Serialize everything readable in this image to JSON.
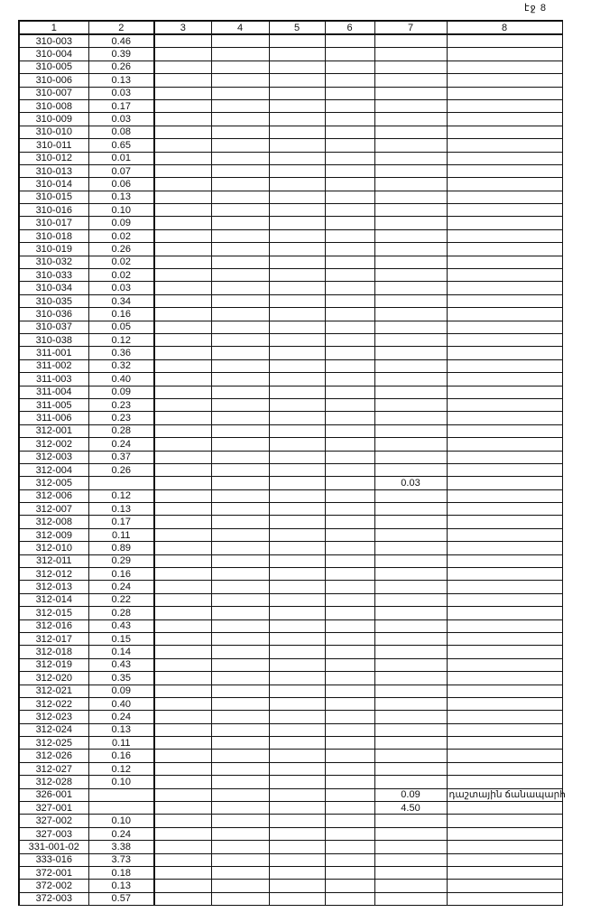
{
  "page_label": "էջ 8",
  "headers": [
    "1",
    "2",
    "3",
    "4",
    "5",
    "6",
    "7",
    "8"
  ],
  "rows": [
    {
      "c1": "310-003",
      "c2": "0.46"
    },
    {
      "c1": "310-004",
      "c2": "0.39"
    },
    {
      "c1": "310-005",
      "c2": "0.26"
    },
    {
      "c1": "310-006",
      "c2": "0.13"
    },
    {
      "c1": "310-007",
      "c2": "0.03"
    },
    {
      "c1": "310-008",
      "c2": "0.17"
    },
    {
      "c1": "310-009",
      "c2": "0.03"
    },
    {
      "c1": "310-010",
      "c2": "0.08"
    },
    {
      "c1": "310-011",
      "c2": "0.65"
    },
    {
      "c1": "310-012",
      "c2": "0.01"
    },
    {
      "c1": "310-013",
      "c2": "0.07"
    },
    {
      "c1": "310-014",
      "c2": "0.06"
    },
    {
      "c1": "310-015",
      "c2": "0.13"
    },
    {
      "c1": "310-016",
      "c2": "0.10"
    },
    {
      "c1": "310-017",
      "c2": "0.09"
    },
    {
      "c1": "310-018",
      "c2": "0.02"
    },
    {
      "c1": "310-019",
      "c2": "0.26"
    },
    {
      "c1": "310-032",
      "c2": "0.02"
    },
    {
      "c1": "310-033",
      "c2": "0.02"
    },
    {
      "c1": "310-034",
      "c2": "0.03"
    },
    {
      "c1": "310-035",
      "c2": "0.34"
    },
    {
      "c1": "310-036",
      "c2": "0.16"
    },
    {
      "c1": "310-037",
      "c2": "0.05"
    },
    {
      "c1": "310-038",
      "c2": "0.12"
    },
    {
      "c1": "311-001",
      "c2": "0.36"
    },
    {
      "c1": "311-002",
      "c2": "0.32"
    },
    {
      "c1": "311-003",
      "c2": "0.40"
    },
    {
      "c1": "311-004",
      "c2": "0.09"
    },
    {
      "c1": "311-005",
      "c2": "0.23"
    },
    {
      "c1": "311-006",
      "c2": "0.23"
    },
    {
      "c1": "312-001",
      "c2": "0.28"
    },
    {
      "c1": "312-002",
      "c2": "0.24"
    },
    {
      "c1": "312-003",
      "c2": "0.37"
    },
    {
      "c1": "312-004",
      "c2": "0.26"
    },
    {
      "c1": "312-005",
      "c2": "",
      "c7": "0.03"
    },
    {
      "c1": "312-006",
      "c2": "0.12"
    },
    {
      "c1": "312-007",
      "c2": "0.13"
    },
    {
      "c1": "312-008",
      "c2": "0.17"
    },
    {
      "c1": "312-009",
      "c2": "0.11"
    },
    {
      "c1": "312-010",
      "c2": "0.89"
    },
    {
      "c1": "312-011",
      "c2": "0.29"
    },
    {
      "c1": "312-012",
      "c2": "0.16"
    },
    {
      "c1": "312-013",
      "c2": "0.24"
    },
    {
      "c1": "312-014",
      "c2": "0.22"
    },
    {
      "c1": "312-015",
      "c2": "0.28"
    },
    {
      "c1": "312-016",
      "c2": "0.43"
    },
    {
      "c1": "312-017",
      "c2": "0.15"
    },
    {
      "c1": "312-018",
      "c2": "0.14"
    },
    {
      "c1": "312-019",
      "c2": "0.43"
    },
    {
      "c1": "312-020",
      "c2": "0.35"
    },
    {
      "c1": "312-021",
      "c2": "0.09"
    },
    {
      "c1": "312-022",
      "c2": "0.40"
    },
    {
      "c1": "312-023",
      "c2": "0.24"
    },
    {
      "c1": "312-024",
      "c2": "0.13"
    },
    {
      "c1": "312-025",
      "c2": "0.11"
    },
    {
      "c1": "312-026",
      "c2": "0.16"
    },
    {
      "c1": "312-027",
      "c2": "0.12"
    },
    {
      "c1": "312-028",
      "c2": "0.10"
    },
    {
      "c1": "326-001",
      "c2": "",
      "c7": "0.09",
      "c8": "դաշտային ճանապարհ"
    },
    {
      "c1": "327-001",
      "c2": "",
      "c7": "4.50"
    },
    {
      "c1": "327-002",
      "c2": "0.10"
    },
    {
      "c1": "327-003",
      "c2": "0.24"
    },
    {
      "c1": "331-001-02",
      "c2": "3.38"
    },
    {
      "c1": "333-016",
      "c2": "3.73"
    },
    {
      "c1": "372-001",
      "c2": "0.18"
    },
    {
      "c1": "372-002",
      "c2": "0.13"
    },
    {
      "c1": "372-003",
      "c2": "0.57"
    }
  ]
}
